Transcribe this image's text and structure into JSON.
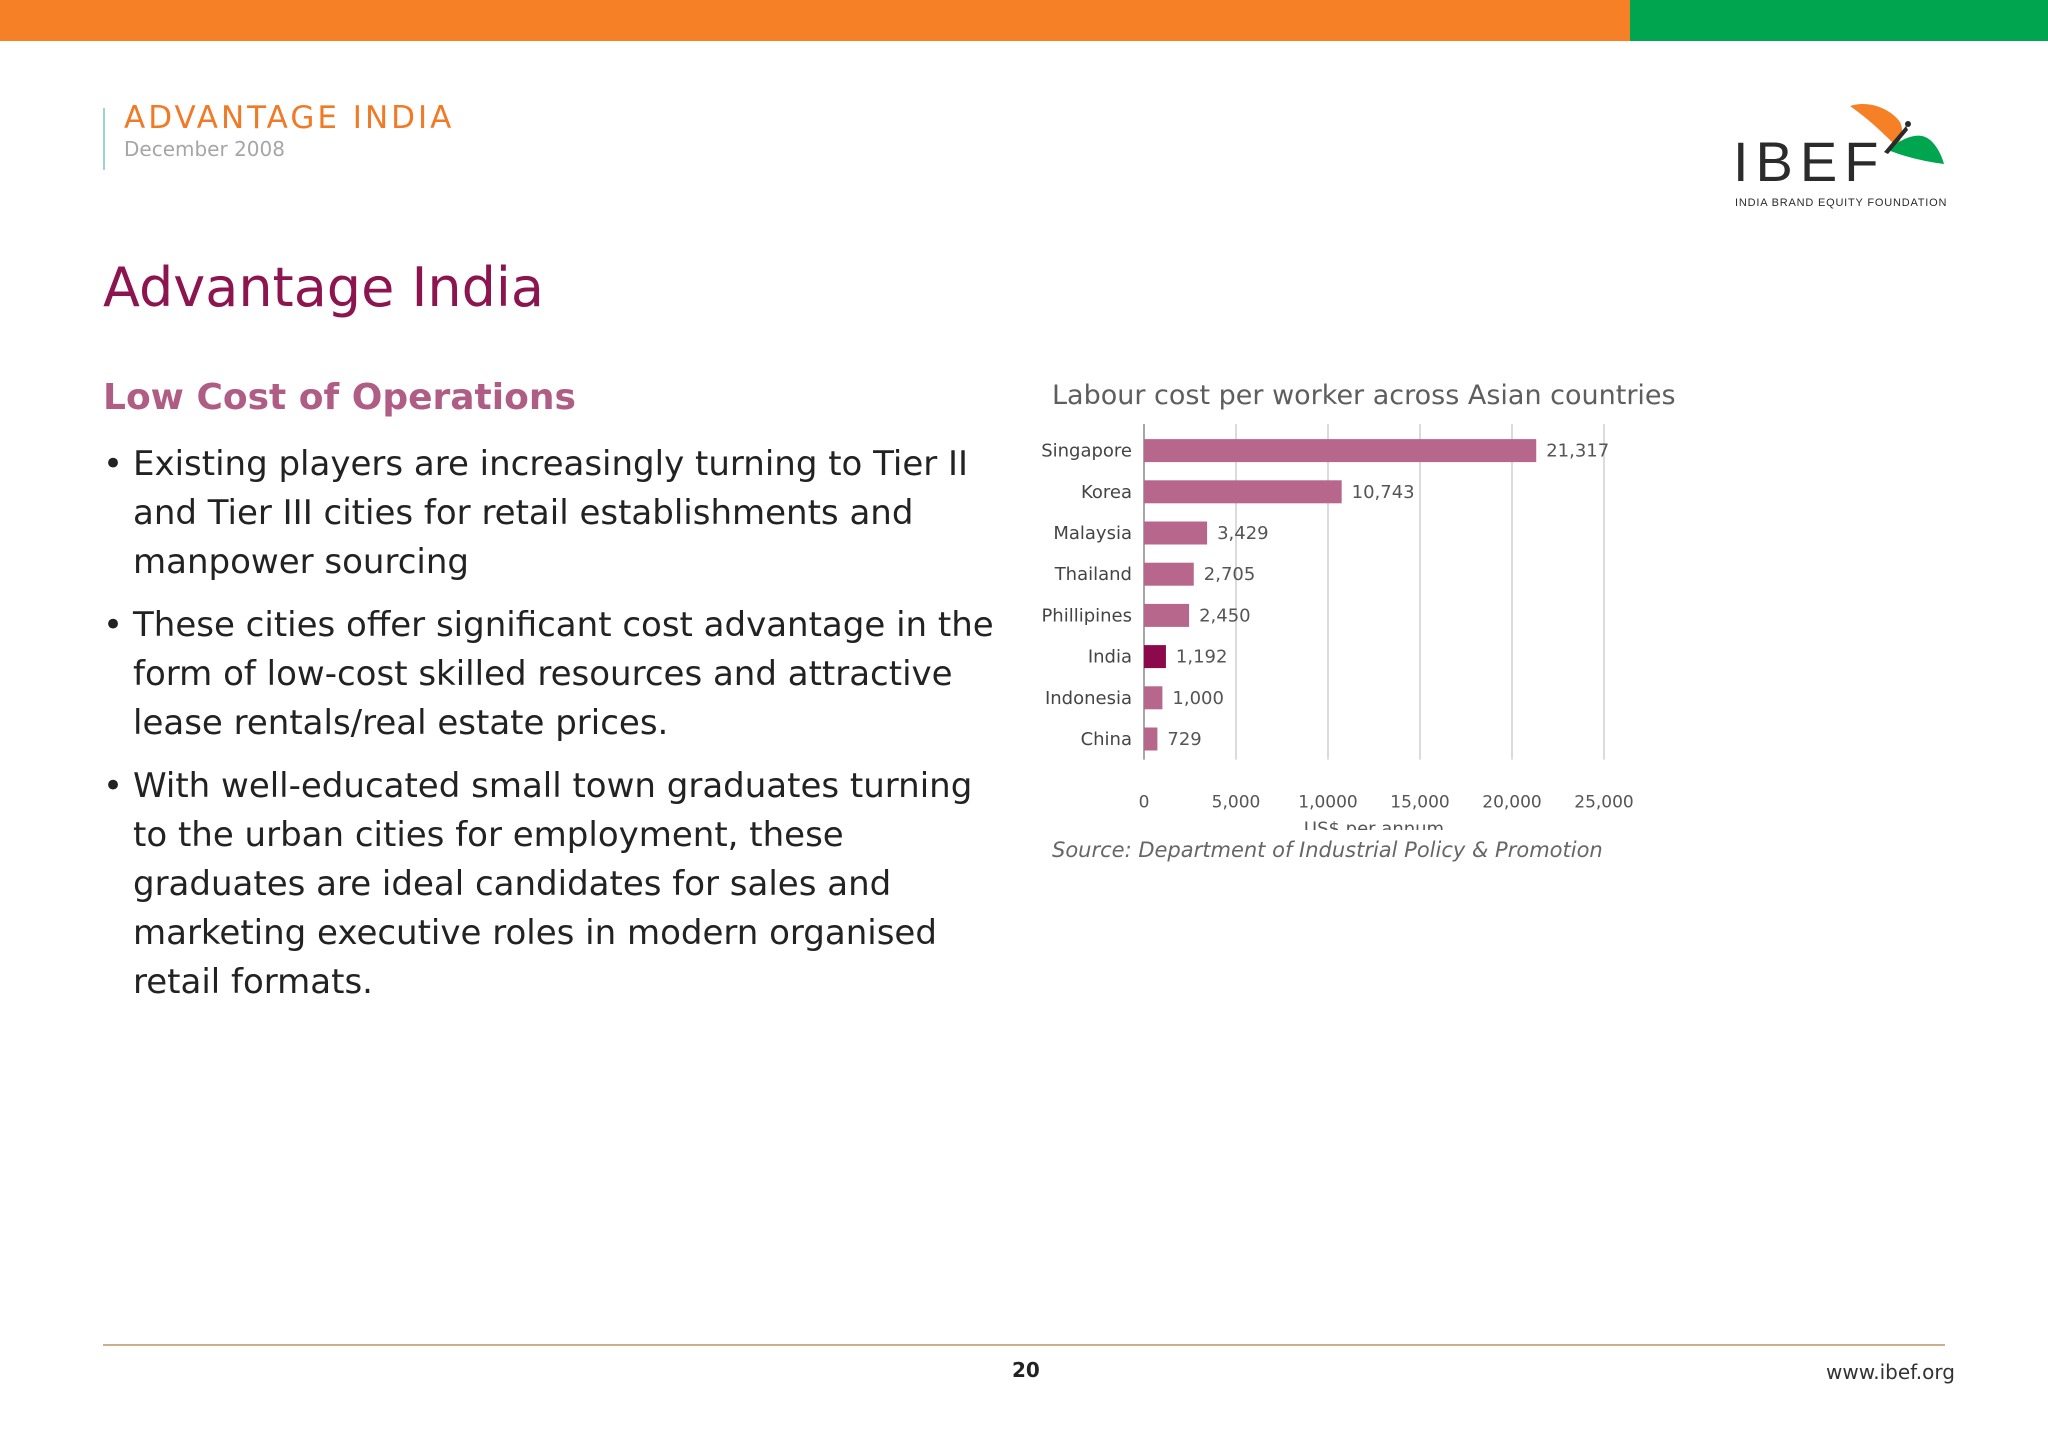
{
  "header": {
    "title": "ADVANTAGE INDIA",
    "date": "December 2008"
  },
  "logo": {
    "name": "IBEF",
    "tagline": "INDIA BRAND EQUITY FOUNDATION"
  },
  "page_title": "Advantage India",
  "section_title": "Low Cost of Operations",
  "bullets": [
    "Existing players are increasingly turning to Tier II and Tier III cities for retail establishments and manpower sourcing",
    "These cities offer significant cost advantage in the form of low-cost skilled resources and attractive lease rentals/real estate prices.",
    "With well-educated small town graduates turning to the urban cities for employment, these graduates are ideal candidates for sales and marketing executive roles in modern organised retail formats."
  ],
  "chart_data": {
    "type": "bar",
    "orientation": "horizontal",
    "title": "Labour cost per worker across Asian countries",
    "xlabel": "US$ per annum",
    "ylabel": "",
    "categories": [
      "Singapore",
      "Korea",
      "Malaysia",
      "Thailand",
      "Phillipines",
      "India",
      "Indonesia",
      "China"
    ],
    "values": [
      21317,
      10743,
      3429,
      2705,
      2450,
      1192,
      1000,
      729
    ],
    "value_labels": [
      "21,317",
      "10,743",
      "3,429",
      "2,705",
      "2,450",
      "1,192",
      "1,000",
      "729"
    ],
    "xlim": [
      0,
      25000
    ],
    "x_ticks": [
      0,
      5000,
      10000,
      15000,
      20000,
      25000
    ],
    "x_tick_labels": [
      "0",
      "5,000",
      "1,0000",
      "15,000",
      "20,000",
      "25,000"
    ],
    "grid": true,
    "colors": {
      "default": "#b8678c",
      "highlight": "#8c0a4c"
    },
    "highlight": "India"
  },
  "source": "Source: Department of Industrial Policy & Promotion",
  "footer": {
    "page_number": "20",
    "site": "www.ibef.org"
  }
}
